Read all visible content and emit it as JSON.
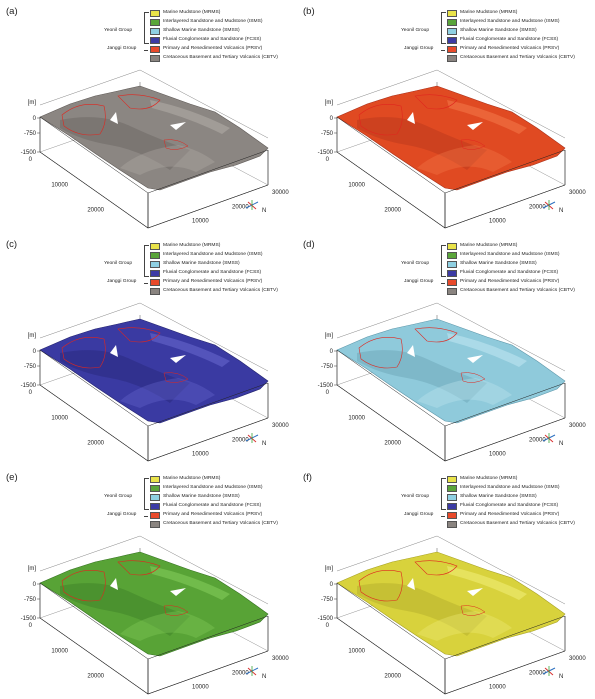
{
  "legend": {
    "groups": {
      "yeonil": "Yeonil Group",
      "janggi": "Janggi Group"
    },
    "items": [
      {
        "label": "Marine Mudstone (MRMS)",
        "color": "#e9e34a"
      },
      {
        "label": "Interlayered Sandstone and Mudstone (ISMS)",
        "color": "#5aa53a"
      },
      {
        "label": "Shallow Marine Sandstone (SMSS)",
        "color": "#8fd0e2"
      },
      {
        "label": "Fluvial Conglomerate and Sandstone (FCSS)",
        "color": "#3c3ba4"
      },
      {
        "label": "Primary and Resedimented Volcanics (PRSV)",
        "color": "#e84a2b"
      },
      {
        "label": "Cretaceous Basement and Tertiary Volcanics (CBTV)",
        "color": "#8a8480"
      }
    ]
  },
  "axes": {
    "unit": "[m]",
    "z_ticks": [
      "0",
      "-750",
      "-1500"
    ],
    "z_top_tick": "[m]",
    "left_axis_ticks": [
      "0",
      "10000",
      "20000",
      "30000"
    ],
    "right_axis_ticks": [
      "0",
      "10000",
      "20000",
      "30000"
    ],
    "north": "N"
  },
  "panels": [
    {
      "label": "(a)",
      "surface_color": "#8b8682",
      "surface_dark": "#5f5a57",
      "surface_light": "#b4aeaa"
    },
    {
      "label": "(b)",
      "surface_color": "#e04a22",
      "surface_dark": "#a8301a",
      "surface_light": "#f47a4a"
    },
    {
      "label": "(c)",
      "surface_color": "#3a3aa2",
      "surface_dark": "#23236e",
      "surface_light": "#6a6ad0"
    },
    {
      "label": "(d)",
      "surface_color": "#8fcadb",
      "surface_dark": "#5e97aa",
      "surface_light": "#c3e8f2"
    },
    {
      "label": "(e)",
      "surface_color": "#58a336",
      "surface_dark": "#357222",
      "surface_light": "#86cf5c"
    },
    {
      "label": "(f)",
      "surface_color": "#d8d23c",
      "surface_dark": "#a7a125",
      "surface_light": "#f2ee7a"
    }
  ]
}
